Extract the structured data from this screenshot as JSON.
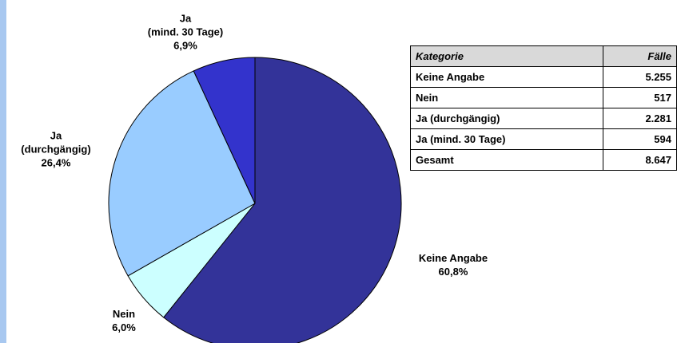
{
  "chart_data": {
    "type": "pie",
    "categories": [
      "Keine Angabe",
      "Nein",
      "Ja\n(durchgängig)",
      "Ja\n(mind. 30 Tage)"
    ],
    "values": [
      60.8,
      6.0,
      26.4,
      6.9
    ],
    "value_labels": [
      "60,8%",
      "6,0%",
      "26,4%",
      "6,9%"
    ],
    "colors": [
      "#333399",
      "#ccffff",
      "#99ccff",
      "#3333cc"
    ]
  },
  "table": {
    "header": [
      "Kategorie",
      "Fälle"
    ],
    "rows": [
      [
        "Keine Angabe",
        "5.255"
      ],
      [
        "Nein",
        "517"
      ],
      [
        "Ja (durchgängig)",
        "2.281"
      ],
      [
        "Ja (mind. 30 Tage)",
        "594"
      ],
      [
        "Gesamt",
        "8.647"
      ]
    ]
  }
}
